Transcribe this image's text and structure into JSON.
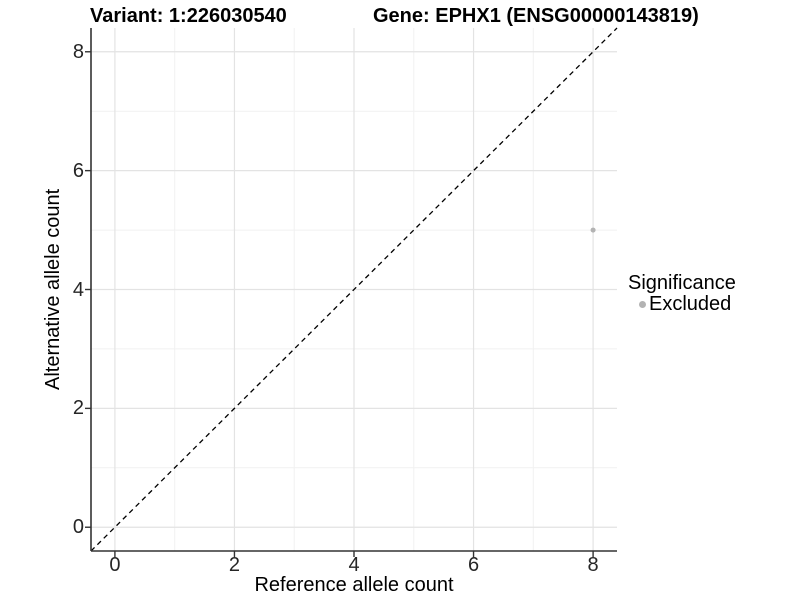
{
  "chart_data": {
    "type": "scatter",
    "title_variant": "Variant: 1:226030540",
    "title_gene": "Gene: EPHX1 (ENSG00000143819)",
    "xlabel": "Reference allele count",
    "ylabel": "Alternative allele count",
    "xlim": [
      -0.4,
      8.4
    ],
    "ylim": [
      -0.4,
      8.4
    ],
    "x_ticks": [
      0,
      2,
      4,
      6,
      8
    ],
    "y_ticks": [
      0,
      2,
      4,
      6,
      8
    ],
    "x_minor_gridlines": [
      1,
      3,
      5,
      7
    ],
    "y_minor_gridlines": [
      1,
      3,
      5,
      7
    ],
    "grid": "major+minor",
    "identity_line": {
      "style": "dashed",
      "x1": -0.4,
      "y1": -0.4,
      "x2": 8.4,
      "y2": 8.4
    },
    "points": [
      {
        "x": 8,
        "y": 5,
        "significance": "Excluded"
      }
    ],
    "legend": {
      "title": "Significance",
      "position": "right",
      "items": [
        {
          "label": "Excluded",
          "color": "#b3b3b3"
        }
      ]
    },
    "colors": {
      "background": "#ffffff",
      "axis_line": "#333333",
      "tick_text": "#262626",
      "grid_major": "#e3e3e3",
      "grid_minor": "#f1f1f1",
      "identity_line": "#000000",
      "point_excluded": "#b3b3b3"
    }
  }
}
